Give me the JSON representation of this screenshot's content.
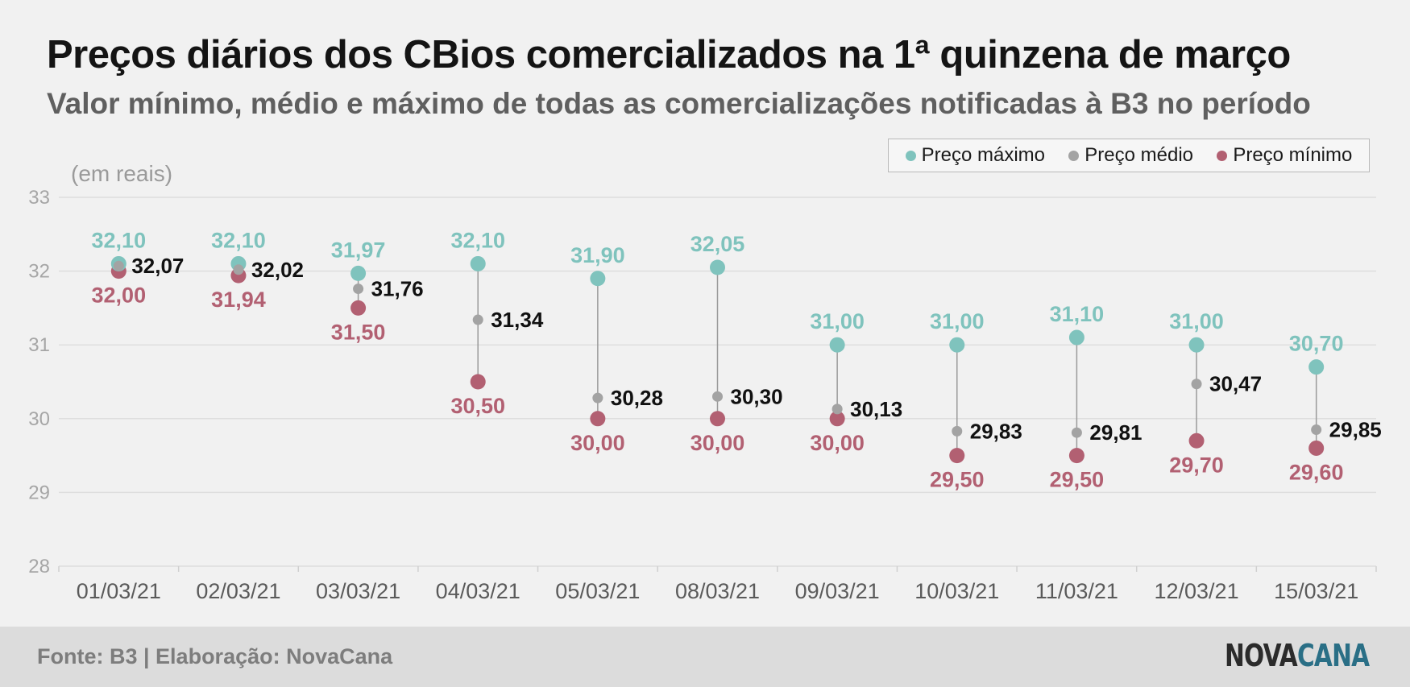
{
  "title": "Preços diários dos CBios comercializados na 1ª quinzena de março",
  "subtitle": "Valor mínimo, médio e máximo de todas as comercializações notificadas à B3 no período",
  "unit_label": "(em reais)",
  "footer": {
    "source": "Fonte: B3 | Elaboração: NovaCana",
    "logo_part1": "NOVA",
    "logo_part2": "CANA"
  },
  "colors": {
    "max": "#7fc3bd",
    "mean": "#a3a3a3",
    "min": "#b26072",
    "axis_text": "#a6a6a6",
    "grid": "#dedede"
  },
  "chart_data": {
    "type": "dot-range",
    "ylim": [
      28,
      33
    ],
    "yticks": [
      28,
      29,
      30,
      31,
      32,
      33
    ],
    "grid": true,
    "legend_position": "top-right",
    "categories": [
      "01/03/21",
      "02/03/21",
      "03/03/21",
      "04/03/21",
      "05/03/21",
      "08/03/21",
      "09/03/21",
      "10/03/21",
      "11/03/21",
      "12/03/21",
      "15/03/21"
    ],
    "series": [
      {
        "name": "Preço máximo",
        "key": "max",
        "values": [
          32.1,
          32.1,
          31.97,
          32.1,
          31.9,
          32.05,
          31.0,
          31.0,
          31.1,
          31.0,
          30.7
        ],
        "labels": [
          "32,10",
          "32,10",
          "31,97",
          "32,10",
          "31,90",
          "32,05",
          "31,00",
          "31,00",
          "31,10",
          "31,00",
          "30,70"
        ]
      },
      {
        "name": "Preço médio",
        "key": "mean",
        "values": [
          32.07,
          32.02,
          31.76,
          31.34,
          30.28,
          30.3,
          30.13,
          29.83,
          29.81,
          30.47,
          29.85
        ],
        "labels": [
          "32,07",
          "32,02",
          "31,76",
          "31,34",
          "30,28",
          "30,30",
          "30,13",
          "29,83",
          "29,81",
          "30,47",
          "29,85"
        ]
      },
      {
        "name": "Preço mínimo",
        "key": "min",
        "values": [
          32.0,
          31.94,
          31.5,
          30.5,
          30.0,
          30.0,
          30.0,
          29.5,
          29.5,
          29.7,
          29.6
        ],
        "labels": [
          "32,00",
          "31,94",
          "31,50",
          "30,50",
          "30,00",
          "30,00",
          "30,00",
          "29,50",
          "29,50",
          "29,70",
          "29,60"
        ]
      }
    ]
  }
}
